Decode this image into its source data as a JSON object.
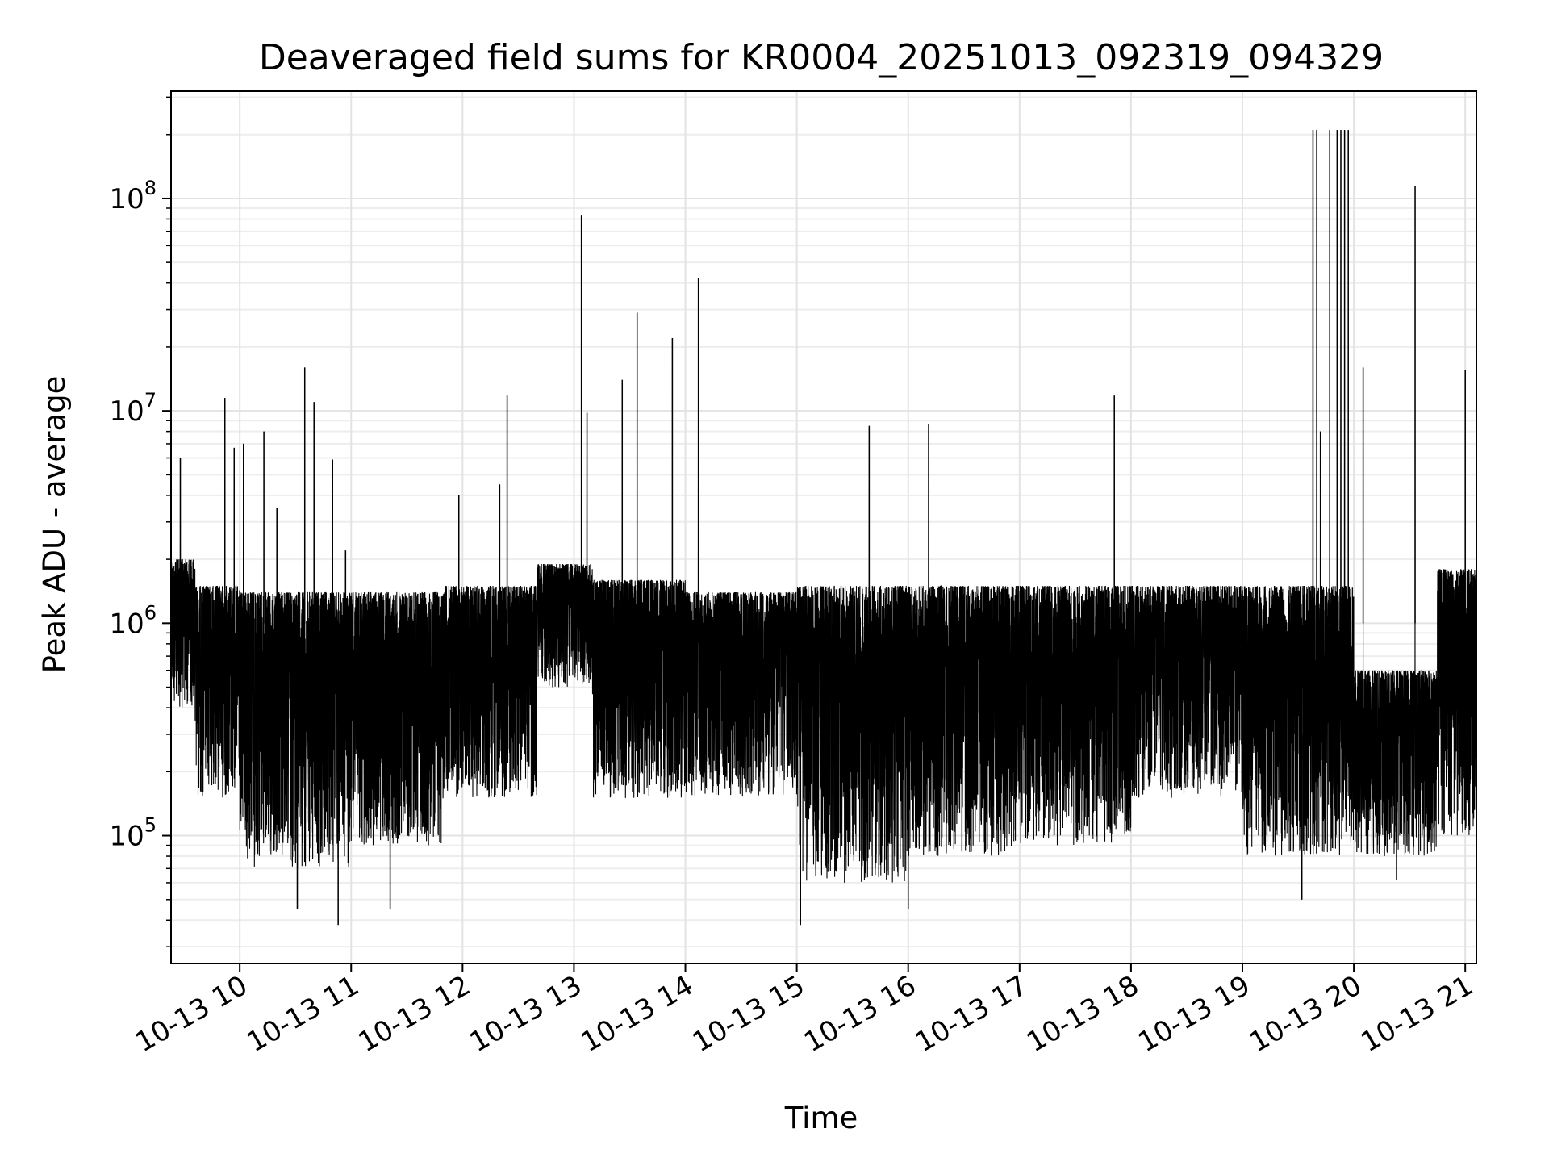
{
  "chart_data": {
    "type": "line",
    "title": "Deaveraged field sums for KR0004_20251013_092319_094329",
    "xlabel": "Time",
    "ylabel": "Peak ADU - average",
    "yscale": "log",
    "ylim": [
      25000,
      320000000
    ],
    "xlim": [
      "2025-10-13 09:23",
      "2025-10-13 21:06"
    ],
    "grid": true,
    "line_color": "#000000",
    "x_ticks": [
      {
        "label": "10-13 10",
        "value": "2025-10-13 10:00"
      },
      {
        "label": "10-13 11",
        "value": "2025-10-13 11:00"
      },
      {
        "label": "10-13 12",
        "value": "2025-10-13 12:00"
      },
      {
        "label": "10-13 13",
        "value": "2025-10-13 13:00"
      },
      {
        "label": "10-13 14",
        "value": "2025-10-13 14:00"
      },
      {
        "label": "10-13 15",
        "value": "2025-10-13 15:00"
      },
      {
        "label": "10-13 16",
        "value": "2025-10-13 16:00"
      },
      {
        "label": "10-13 17",
        "value": "2025-10-13 17:00"
      },
      {
        "label": "10-13 18",
        "value": "2025-10-13 18:00"
      },
      {
        "label": "10-13 19",
        "value": "2025-10-13 19:00"
      },
      {
        "label": "10-13 20",
        "value": "2025-10-13 20:00"
      },
      {
        "label": "10-13 21",
        "value": "2025-10-13 21:00"
      }
    ],
    "y_ticks": [
      {
        "base": "10",
        "exp": "5",
        "value": 100000
      },
      {
        "base": "10",
        "exp": "6",
        "value": 1000000
      },
      {
        "base": "10",
        "exp": "7",
        "value": 10000000
      },
      {
        "base": "10",
        "exp": "8",
        "value": 100000000
      }
    ],
    "segments": [
      {
        "start": "2025-10-13 09:23",
        "end": "2025-10-13 09:36",
        "low": 400000,
        "high": 2000000
      },
      {
        "start": "2025-10-13 09:36",
        "end": "2025-10-13 10:00",
        "low": 150000,
        "high": 1500000
      },
      {
        "start": "2025-10-13 10:00",
        "end": "2025-10-13 11:00",
        "low": 70000,
        "high": 1400000
      },
      {
        "start": "2025-10-13 11:00",
        "end": "2025-10-13 11:50",
        "low": 90000,
        "high": 1400000
      },
      {
        "start": "2025-10-13 11:50",
        "end": "2025-10-13 12:40",
        "low": 150000,
        "high": 1500000
      },
      {
        "start": "2025-10-13 12:40",
        "end": "2025-10-13 13:10",
        "low": 500000,
        "high": 1900000
      },
      {
        "start": "2025-10-13 13:10",
        "end": "2025-10-13 14:00",
        "low": 150000,
        "high": 1600000
      },
      {
        "start": "2025-10-13 14:00",
        "end": "2025-10-13 15:00",
        "low": 150000,
        "high": 1400000
      },
      {
        "start": "2025-10-13 15:00",
        "end": "2025-10-13 16:00",
        "low": 60000,
        "high": 1500000
      },
      {
        "start": "2025-10-13 16:00",
        "end": "2025-10-13 17:00",
        "low": 80000,
        "high": 1500000
      },
      {
        "start": "2025-10-13 17:00",
        "end": "2025-10-13 18:00",
        "low": 90000,
        "high": 1500000
      },
      {
        "start": "2025-10-13 18:00",
        "end": "2025-10-13 19:00",
        "low": 150000,
        "high": 1500000
      },
      {
        "start": "2025-10-13 19:00",
        "end": "2025-10-13 20:00",
        "low": 80000,
        "high": 1500000
      },
      {
        "start": "2025-10-13 20:00",
        "end": "2025-10-13 20:45",
        "low": 80000,
        "high": 600000
      },
      {
        "start": "2025-10-13 20:45",
        "end": "2025-10-13 21:06",
        "low": 100000,
        "high": 1800000
      }
    ],
    "spikes": [
      {
        "x": "2025-10-13 09:28",
        "y": 6000000
      },
      {
        "x": "2025-10-13 09:52",
        "y": 11500000
      },
      {
        "x": "2025-10-13 09:57",
        "y": 6700000
      },
      {
        "x": "2025-10-13 10:02",
        "y": 7000000
      },
      {
        "x": "2025-10-13 10:13",
        "y": 8000000
      },
      {
        "x": "2025-10-13 10:20",
        "y": 3500000
      },
      {
        "x": "2025-10-13 10:35",
        "y": 16000000
      },
      {
        "x": "2025-10-13 10:40",
        "y": 11000000
      },
      {
        "x": "2025-10-13 10:50",
        "y": 5900000
      },
      {
        "x": "2025-10-13 10:57",
        "y": 2200000
      },
      {
        "x": "2025-10-13 11:58",
        "y": 4000000
      },
      {
        "x": "2025-10-13 12:20",
        "y": 4500000
      },
      {
        "x": "2025-10-13 12:24",
        "y": 11800000
      },
      {
        "x": "2025-10-13 13:04",
        "y": 83000000
      },
      {
        "x": "2025-10-13 13:07",
        "y": 9800000
      },
      {
        "x": "2025-10-13 13:26",
        "y": 14000000
      },
      {
        "x": "2025-10-13 13:34",
        "y": 29000000
      },
      {
        "x": "2025-10-13 13:53",
        "y": 22000000
      },
      {
        "x": "2025-10-13 14:07",
        "y": 42000000
      },
      {
        "x": "2025-10-13 15:39",
        "y": 8500000
      },
      {
        "x": "2025-10-13 16:11",
        "y": 8700000
      },
      {
        "x": "2025-10-13 17:51",
        "y": 11800000
      },
      {
        "x": "2025-10-13 19:38",
        "y": 210000000
      },
      {
        "x": "2025-10-13 19:40",
        "y": 210000000
      },
      {
        "x": "2025-10-13 19:42",
        "y": 8000000
      },
      {
        "x": "2025-10-13 19:47",
        "y": 210000000
      },
      {
        "x": "2025-10-13 19:51",
        "y": 210000000
      },
      {
        "x": "2025-10-13 19:53",
        "y": 210000000
      },
      {
        "x": "2025-10-13 19:55",
        "y": 210000000
      },
      {
        "x": "2025-10-13 19:57",
        "y": 210000000
      },
      {
        "x": "2025-10-13 20:05",
        "y": 16000000
      },
      {
        "x": "2025-10-13 20:33",
        "y": 115000000
      },
      {
        "x": "2025-10-13 21:00",
        "y": 15500000
      }
    ],
    "dips": [
      {
        "x": "2025-10-13 10:31",
        "y": 45000
      },
      {
        "x": "2025-10-13 10:53",
        "y": 38000
      },
      {
        "x": "2025-10-13 11:21",
        "y": 45000
      },
      {
        "x": "2025-10-13 15:02",
        "y": 38000
      },
      {
        "x": "2025-10-13 16:00",
        "y": 45000
      },
      {
        "x": "2025-10-13 19:32",
        "y": 50000
      },
      {
        "x": "2025-10-13 20:23",
        "y": 62000
      }
    ]
  }
}
